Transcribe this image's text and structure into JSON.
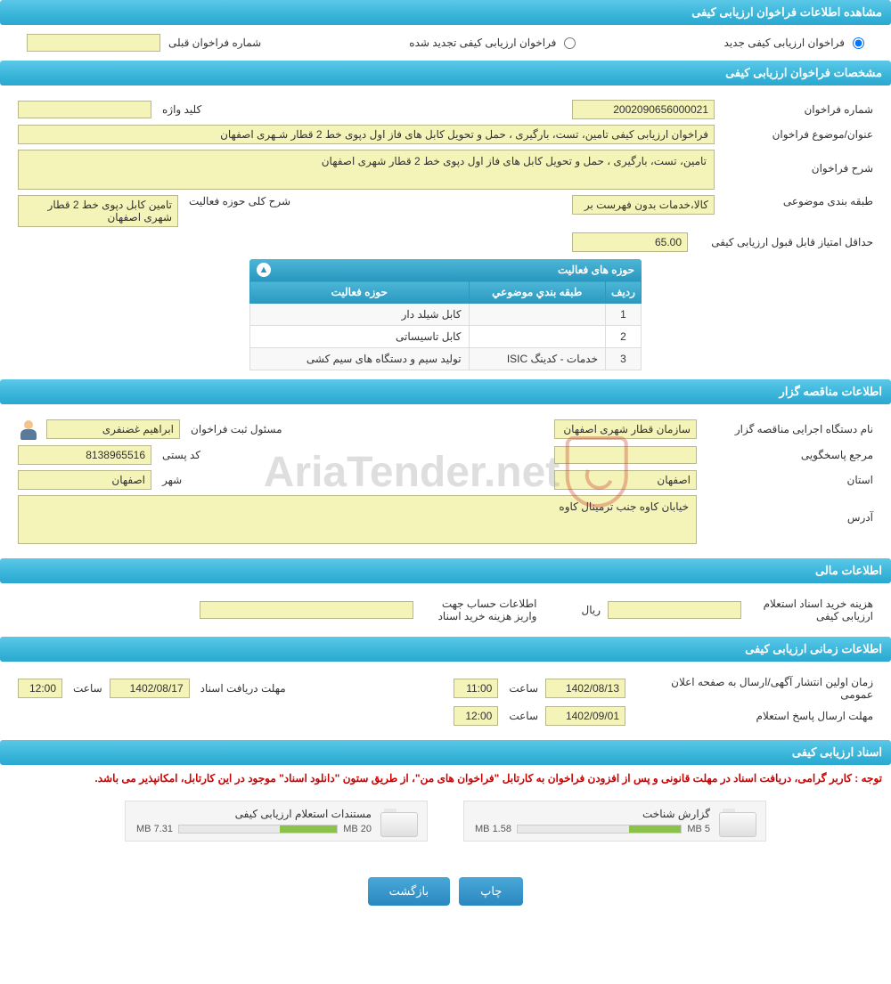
{
  "headers": {
    "main": "مشاهده اطلاعات فراخوان ارزیابی کیفی",
    "specs": "مشخصات فراخوان ارزیابی کیفی",
    "tenderer": "اطلاعات مناقصه گزار",
    "financial": "اطلاعات مالی",
    "timing": "اطلاعات زمانی ارزیابی کیفی",
    "docs": "اسناد ارزیابی کیفی"
  },
  "top": {
    "radio_new": "فراخوان ارزیابی کیفی جدید",
    "radio_renewed": "فراخوان ارزیابی کیفی تجدید شده",
    "prev_label": "شماره فراخوان قبلی",
    "prev_value": ""
  },
  "specs": {
    "num_label": "شماره فراخوان",
    "num_value": "2002090656000021",
    "keyword_label": "کلید واژه",
    "keyword_value": "",
    "title_label": "عنوان/موضوع فراخوان",
    "title_value": "فراخوان ارزیابی کیفی تامین، تست، بارگیری ، حمل و تحویل کابل های فاز اول دپوی خط 2 قطار شـهری اصفهان",
    "desc_label": "شرح فراخوان",
    "desc_value": "تامین، تست، بارگیری ، حمل و تحویل کابل های فاز اول دپوی خط 2 قطار شهری اصفهان",
    "category_label": "طبقه بندی موضوعی",
    "category_value": "کالا،خدمات بدون فهرست بر",
    "activity_scope_label": "شرح کلی حوزه فعالیت",
    "activity_scope_value": "تامین کابل دپوی خط 2 قطار شهری اصفهان",
    "min_score_label": "حداقل امتیاز قابل قبول ارزیابی کیفی",
    "min_score_value": "65.00"
  },
  "activity_table": {
    "title": "حوزه های فعالیت",
    "col_row": "ردیف",
    "col_category": "طبقه بندي موضوعي",
    "col_scope": "حوزه فعالیت",
    "rows": [
      {
        "n": "1",
        "cat": "",
        "scope": "کابل شیلد دار"
      },
      {
        "n": "2",
        "cat": "",
        "scope": "کابل تاسیساتی"
      },
      {
        "n": "3",
        "cat": "خدمات - کدینگ ISIC",
        "scope": "تولید سیم و دستگاه های سیم کشی"
      }
    ]
  },
  "tenderer": {
    "org_label": "نام دستگاه اجرایی مناقصه گزار",
    "org_value": "سازمان قطار شهری اصفهان",
    "registrar_label": "مسئول ثبت فراخوان",
    "registrar_value": "ابراهیم غضنفری",
    "contact_label": "مرجع پاسخگویی",
    "contact_value": "",
    "postal_label": "کد پستی",
    "postal_value": "8138965516",
    "province_label": "استان",
    "province_value": "اصفهان",
    "city_label": "شهر",
    "city_value": "اصفهان",
    "address_label": "آدرس",
    "address_value": "خیابان کاوه جنب ترمینال کاوه"
  },
  "financial": {
    "cost_label": "هزینه خرید اسناد استعلام ارزیابی کیفی",
    "cost_value": "",
    "currency": "ریال",
    "account_label": "اطلاعات حساب جهت واریز هزینه خرید اسناد",
    "account_value": ""
  },
  "timing": {
    "pub_label": "زمان اولین انتشار آگهی/ارسال به صفحه اعلان عمومی",
    "pub_date": "1402/08/13",
    "pub_time": "11:00",
    "deadline_label": "مهلت دریافت اسناد",
    "deadline_date": "1402/08/17",
    "deadline_time": "12:00",
    "response_label": "مهلت ارسال پاسخ استعلام",
    "response_date": "1402/09/01",
    "response_time": "12:00",
    "time_word": "ساعت"
  },
  "docs": {
    "notice": "توجه : کاربر گرامی، دریافت اسناد در مهلت قانونی و پس از افزودن فراخوان به کارتابل \"فراخوان های من\"، از طریق ستون \"دانلود اسناد\" موجود در این کارتابل، امکانپذیر می باشد.",
    "items": [
      {
        "title": "گزارش شناخت",
        "used": "1.58 MB",
        "total": "5 MB",
        "pct": 32
      },
      {
        "title": "مستندات استعلام ارزیابی کیفی",
        "used": "7.31 MB",
        "total": "20 MB",
        "pct": 36
      }
    ]
  },
  "buttons": {
    "print": "چاپ",
    "back": "بازگشت"
  },
  "watermark": "AriaTender.net",
  "colors": {
    "header_bg": "#3eb8dc",
    "field_bg": "#f4f3b8",
    "btn_bg": "#2a88c0",
    "notice": "#c00",
    "progress": "#8bc34a"
  }
}
